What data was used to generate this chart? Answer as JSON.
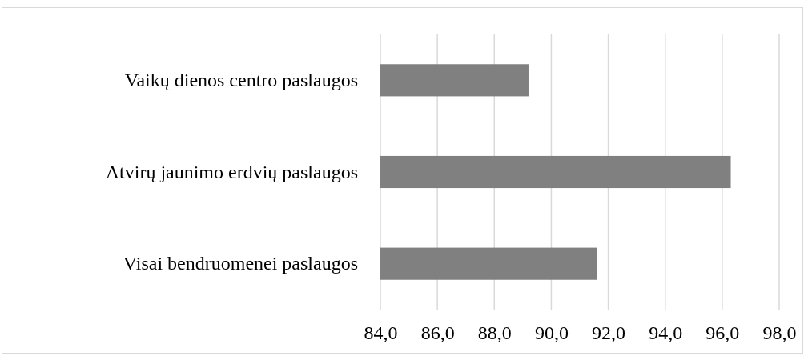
{
  "chart_data": {
    "type": "bar",
    "orientation": "horizontal",
    "categories": [
      "Vaikų dienos centro paslaugos",
      "Atvirų jaunimo erdvių paslaugos",
      "Visai bendruomenei paslaugos"
    ],
    "values": [
      89.2,
      96.3,
      91.6
    ],
    "color": "#808080",
    "xlim": [
      84,
      98
    ],
    "xticks": [
      {
        "value": 84,
        "label": "84,0"
      },
      {
        "value": 86,
        "label": "86,0"
      },
      {
        "value": 88,
        "label": "88,0"
      },
      {
        "value": 90,
        "label": "90,0"
      },
      {
        "value": 92,
        "label": "92,0"
      },
      {
        "value": 94,
        "label": "94,0"
      },
      {
        "value": 96,
        "label": "96,0"
      },
      {
        "value": 98,
        "label": "98,0"
      }
    ],
    "grid": "x"
  }
}
